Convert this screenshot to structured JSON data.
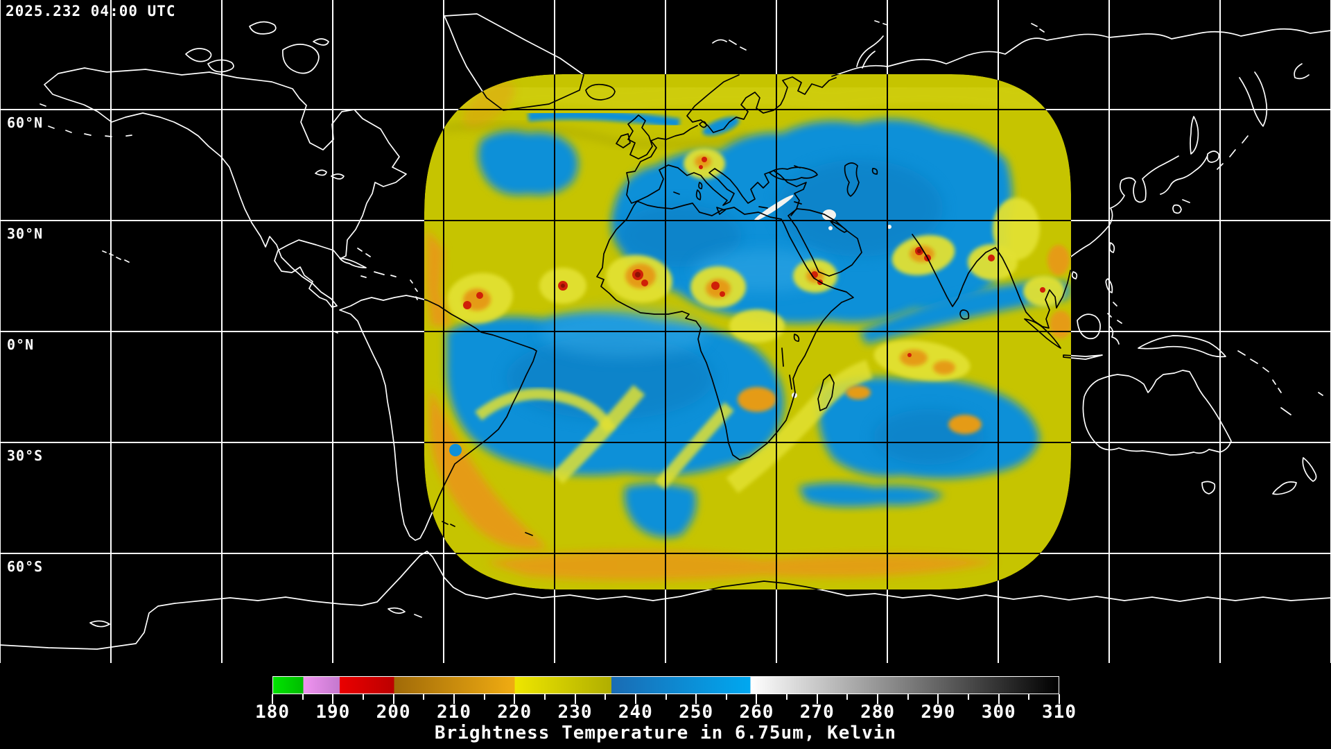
{
  "header": {
    "timestamp": "2025.232 04:00 UTC"
  },
  "map": {
    "lat_labels": [
      {
        "label": "60°N",
        "lat": 60
      },
      {
        "label": "30°N",
        "lat": 30
      },
      {
        "label": "0°N",
        "lat": 0
      },
      {
        "label": "30°S",
        "lat": -30
      },
      {
        "label": "60°S",
        "lat": -60
      }
    ],
    "lon_gridline_spacing_deg": 30,
    "lat_gridline_spacing_deg": 30
  },
  "colorbar": {
    "title": "Brightness Temperature in 6.75um, Kelvin",
    "unit": "Kelvin",
    "min": 180,
    "max": 310,
    "major_ticks": [
      180,
      190,
      200,
      210,
      220,
      230,
      240,
      250,
      260,
      270,
      280,
      290,
      300,
      310
    ],
    "minor_ticks": [
      185,
      195,
      205,
      215,
      225,
      235,
      245,
      255,
      265,
      275,
      285,
      295,
      305
    ],
    "stops": [
      {
        "k": 180,
        "color": "#00e400"
      },
      {
        "k": 185,
        "color": "#00bc00"
      },
      {
        "k": 185,
        "color": "#f094f0"
      },
      {
        "k": 191,
        "color": "#c478ce"
      },
      {
        "k": 191,
        "color": "#ea0000"
      },
      {
        "k": 200,
        "color": "#bc0000"
      },
      {
        "k": 200,
        "color": "#a06a08"
      },
      {
        "k": 220,
        "color": "#f0ac12"
      },
      {
        "k": 220,
        "color": "#eee600"
      },
      {
        "k": 236,
        "color": "#b0ae00"
      },
      {
        "k": 236,
        "color": "#1a6cb4"
      },
      {
        "k": 259,
        "color": "#00a8f0"
      },
      {
        "k": 259,
        "color": "#ffffff"
      },
      {
        "k": 310,
        "color": "#000000"
      }
    ]
  },
  "palette": {
    "background": "#000000",
    "coast_outside": "#ffffff",
    "coast_inside": "#000000",
    "grid_outside": "#ffffff",
    "grid_inside": "#000000",
    "data_yellow": "#c6c400",
    "data_yellow_bright": "#e2e130",
    "data_blue": "#0f90d8",
    "data_blue_deep": "#0b7cc0",
    "data_orange": "#e59b12",
    "data_red": "#cf2008",
    "data_red_dark": "#8f1004",
    "data_white": "#f3f3ef"
  },
  "chart_data": {
    "type": "heatmap",
    "title": "Brightness Temperature in 6.75um, Kelvin",
    "timestamp": "2025.232 04:00 UTC",
    "value_range_kelvin": [
      180,
      310
    ],
    "colorbar_ticks_kelvin": [
      180,
      190,
      200,
      210,
      220,
      230,
      240,
      250,
      260,
      270,
      280,
      290,
      300,
      310
    ],
    "palette_stops": [
      {
        "k": 180,
        "color": "#00e400"
      },
      {
        "k": 185,
        "color": "#00bc00"
      },
      {
        "k": 185,
        "color": "#f094f0"
      },
      {
        "k": 191,
        "color": "#c478ce"
      },
      {
        "k": 191,
        "color": "#ea0000"
      },
      {
        "k": 200,
        "color": "#bc0000"
      },
      {
        "k": 200,
        "color": "#a06a08"
      },
      {
        "k": 220,
        "color": "#f0ac12"
      },
      {
        "k": 220,
        "color": "#eee600"
      },
      {
        "k": 236,
        "color": "#b0ae00"
      },
      {
        "k": 236,
        "color": "#1a6cb4"
      },
      {
        "k": 259,
        "color": "#00a8f0"
      },
      {
        "k": 259,
        "color": "#ffffff"
      },
      {
        "k": 310,
        "color": "#000000"
      }
    ],
    "lat_gridlines": [
      "60°N",
      "30°N",
      "0°N",
      "30°S",
      "60°S"
    ],
    "lon_gridline_spacing_deg": 30,
    "legend_position": "bottom",
    "basemap": "world coastlines, equirectangular, white outside data swath, black inside",
    "data_extent": "rounded full-disk swath covering roughly 65W-110E and 65N-65S"
  }
}
